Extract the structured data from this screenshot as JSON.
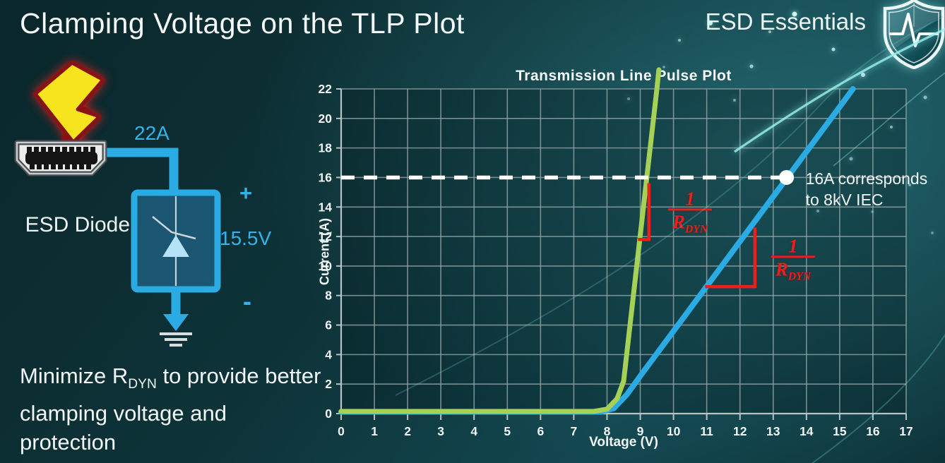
{
  "header": {
    "title": "Clamping Voltage on the TLP Plot"
  },
  "brand": {
    "name": "ESD Essentials"
  },
  "diagram": {
    "surge_current_label": "22A",
    "component_label": "ESD Diode",
    "plus_label": "+",
    "clamp_voltage_label": "15.5V",
    "minus_label": "-"
  },
  "note": {
    "pre": "Minimize R",
    "sub": "DYN",
    "post": " to provide better clamping voltage and protection"
  },
  "colors": {
    "green_curve": "#a6d157",
    "blue_curve": "#2aabe3",
    "annotation_red": "#e8211d",
    "label_cyan": "#35b2e6",
    "grid": "#92a5a6",
    "dashed_guide": "#ffffff"
  },
  "chart_data": {
    "type": "line",
    "title": "Transmission Line Pulse Plot",
    "xlabel": "Voltage (V)",
    "ylabel": "Current (A)",
    "xlim": [
      0,
      17
    ],
    "ylim": [
      0,
      22
    ],
    "x_ticks": [
      0,
      1,
      2,
      3,
      4,
      5,
      6,
      7,
      8,
      9,
      10,
      11,
      12,
      13,
      14,
      15,
      16,
      17
    ],
    "y_ticks": [
      0,
      2,
      4,
      6,
      8,
      10,
      12,
      14,
      16,
      18,
      20,
      22
    ],
    "grid": {
      "x_step": 1,
      "y_step": 2,
      "shown": true
    },
    "legend": "none",
    "series": [
      {
        "color": "#2aabe3",
        "points": [
          [
            0,
            0.12
          ],
          [
            7.8,
            0.12
          ],
          [
            8.2,
            0.35
          ],
          [
            8.6,
            1.3
          ],
          [
            9.05,
            2.7
          ],
          [
            15.4,
            22
          ]
        ]
      },
      {
        "color": "#a6d157",
        "points": [
          [
            0,
            0.15
          ],
          [
            7.6,
            0.15
          ],
          [
            8.0,
            0.3
          ],
          [
            8.3,
            1.0
          ],
          [
            8.5,
            2.2
          ],
          [
            9.5,
            22
          ],
          [
            9.56,
            23.3
          ]
        ]
      }
    ],
    "guide_line": {
      "y": 16,
      "x_start": 0,
      "x_end": 13.4,
      "style": "dashed",
      "color": "#ffffff"
    },
    "marker": {
      "x": 13.4,
      "y": 16,
      "label_lines": [
        "16A corresponds",
        "to 8kV IEC"
      ]
    },
    "slope_annotations": [
      {
        "num": "1",
        "den": "R",
        "den_sub": "DYN",
        "color": "#e8211d",
        "bracket": [
          [
            9.26,
            15.5
          ],
          [
            9.26,
            11.8
          ],
          [
            8.98,
            11.8
          ]
        ],
        "label_pos": [
          10.5,
          13.5
        ]
      },
      {
        "num": "1",
        "den": "R",
        "den_sub": "DYN",
        "color": "#e8211d",
        "bracket": [
          [
            12.45,
            12.5
          ],
          [
            12.45,
            8.6
          ],
          [
            11.0,
            8.6
          ]
        ],
        "label_pos": [
          13.6,
          10.3
        ]
      }
    ]
  }
}
